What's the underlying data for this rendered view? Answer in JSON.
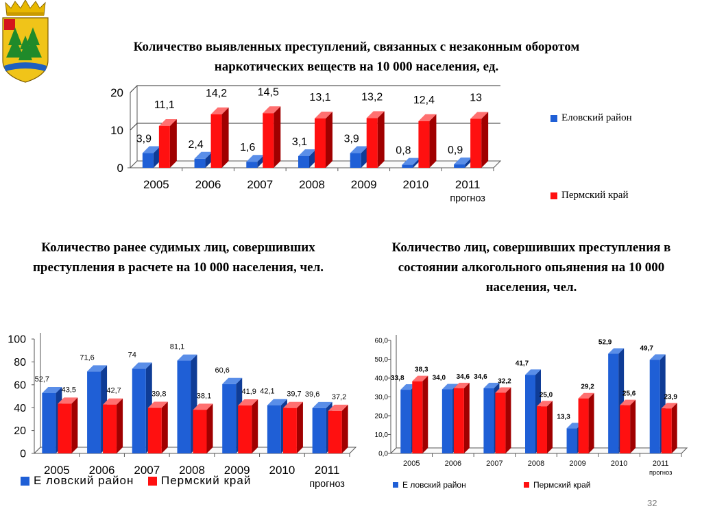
{
  "slide": {
    "title_main": "Количество выявленных преступлений, связанных с незаконным оборотом наркотических веществ на 10 000 населения, ед.",
    "title_left": "Количество ранее судимых лиц, совершивших  преступления в расчете на 10 000 населения, чел.",
    "title_right": "Количество лиц, совершивших преступления в состоянии алкогольного опьянения на 10 000 населения, чел.",
    "page_number": "32"
  },
  "legend": {
    "chart1": {
      "a": "Еловский район",
      "b": "Пермский край"
    },
    "chart2": {
      "a": "Е ловский район",
      "b": "Пермский край"
    },
    "chart3": {
      "a": "Е ловский район",
      "b": "Пермский край"
    }
  },
  "colors": {
    "blue": "#1f5fd6",
    "blue_dark": "#0f3c96",
    "blue_top": "#5a8ee8",
    "red": "#ff1010",
    "red_dark": "#a00000",
    "red_top": "#ff7070",
    "axis": "#555555",
    "grid": "#333333"
  },
  "chart_data": [
    {
      "type": "bar",
      "categories": [
        "2005",
        "2006",
        "2007",
        "2008",
        "2009",
        "2010",
        "2011"
      ],
      "category_sublabels": [
        "",
        "",
        "",
        "",
        "",
        "",
        "прогноз"
      ],
      "series": [
        {
          "name": "Еловский район",
          "values": [
            3.9,
            2.4,
            1.6,
            3.1,
            3.9,
            0.8,
            0.9
          ],
          "labels": [
            "3,9",
            "2,4",
            "1,6",
            "3,1",
            "3,9",
            "0,8",
            "0,9"
          ]
        },
        {
          "name": "Пермский край",
          "values": [
            11.1,
            14.2,
            14.5,
            13.1,
            13.2,
            12.4,
            13
          ],
          "labels": [
            "11,1",
            "14,2",
            "14,5",
            "13,1",
            "13,2",
            "12,4",
            "13"
          ]
        }
      ],
      "ylim": [
        0,
        20
      ],
      "ticks": [
        0,
        10,
        20
      ],
      "tick_labels": [
        "0",
        "10",
        "20"
      ],
      "grid": true,
      "legend": "right"
    },
    {
      "type": "bar",
      "categories": [
        "2005",
        "2006",
        "2007",
        "2008",
        "2009",
        "2010",
        "2011"
      ],
      "category_sublabels": [
        "",
        "",
        "",
        "",
        "",
        "",
        "прогноз"
      ],
      "series": [
        {
          "name": "Е ловский район",
          "values": [
            52.7,
            71.6,
            74,
            81.1,
            60.6,
            42.1,
            39.6
          ],
          "labels": [
            "52,7",
            "71,6",
            "74",
            "81,1",
            "60,6",
            "42,1",
            "39,6"
          ]
        },
        {
          "name": "Пермский край",
          "values": [
            43.5,
            42.7,
            39.8,
            38.1,
            41.9,
            39.7,
            37.2
          ],
          "labels": [
            "43,5",
            "42,7",
            "39,8",
            "38,1",
            "41,9",
            "39,7",
            "37,2"
          ]
        }
      ],
      "ylim": [
        0,
        100
      ],
      "ticks": [
        0,
        20,
        40,
        60,
        80,
        100
      ],
      "tick_labels": [
        "0",
        "20",
        "40",
        "60",
        "80",
        "100"
      ],
      "grid": false,
      "legend": "bottom"
    },
    {
      "type": "bar",
      "categories": [
        "2005",
        "2006",
        "2007",
        "2008",
        "2009",
        "2010",
        "2011"
      ],
      "category_sublabels": [
        "",
        "",
        "",
        "",
        "",
        "",
        "прогноз"
      ],
      "series": [
        {
          "name": "Е ловский район",
          "values": [
            33.8,
            34.0,
            34.6,
            41.7,
            13.3,
            52.9,
            49.7
          ],
          "labels": [
            "33,8",
            "34,0",
            "34,6",
            "41,7",
            "13,3",
            "52,9",
            "49,7"
          ]
        },
        {
          "name": "Пермский край",
          "values": [
            38.3,
            34.6,
            32.2,
            25.0,
            29.2,
            25.6,
            23.9
          ],
          "labels": [
            "38,3",
            "34,6",
            "32,2",
            "25,0",
            "29,2",
            "25,6",
            "23,9"
          ]
        }
      ],
      "ylim": [
        0,
        60
      ],
      "ticks": [
        0,
        10,
        20,
        30,
        40,
        50,
        60
      ],
      "tick_labels": [
        "0,0",
        "10,0",
        "20,0",
        "30,0",
        "40,0",
        "50,0",
        "60,0"
      ],
      "grid": false,
      "legend": "bottom"
    }
  ]
}
